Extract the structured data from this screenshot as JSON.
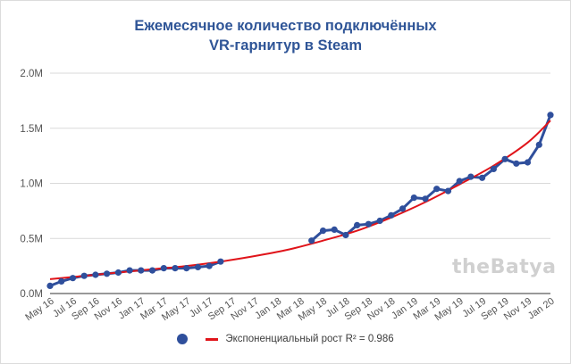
{
  "chart_data": {
    "type": "line",
    "title_line1": "Ежемесячное количество подключённых",
    "title_line2": "VR-гарнитур в Steam",
    "watermark": "theBatya",
    "y_ticks": [
      {
        "value": 0,
        "label": "0.0M"
      },
      {
        "value": 0.5,
        "label": "0.5M"
      },
      {
        "value": 1.0,
        "label": "1.0M"
      },
      {
        "value": 1.5,
        "label": "1.5M"
      },
      {
        "value": 2.0,
        "label": "2.0M"
      }
    ],
    "ylim": [
      0,
      2.0
    ],
    "x_range": [
      0,
      44
    ],
    "x_ticks": [
      {
        "index": 0,
        "label": "May 16"
      },
      {
        "index": 2,
        "label": "Jul 16"
      },
      {
        "index": 4,
        "label": "Sep 16"
      },
      {
        "index": 6,
        "label": "Nov 16"
      },
      {
        "index": 8,
        "label": "Jan 17"
      },
      {
        "index": 10,
        "label": "Mar 17"
      },
      {
        "index": 12,
        "label": "May 17"
      },
      {
        "index": 14,
        "label": "Jul 17"
      },
      {
        "index": 16,
        "label": "Sep 17"
      },
      {
        "index": 18,
        "label": "Nov 17"
      },
      {
        "index": 20,
        "label": "Jan 18"
      },
      {
        "index": 22,
        "label": "Mar 18"
      },
      {
        "index": 24,
        "label": "May 18"
      },
      {
        "index": 26,
        "label": "Jul 18"
      },
      {
        "index": 28,
        "label": "Sep 18"
      },
      {
        "index": 30,
        "label": "Nov 18"
      },
      {
        "index": 32,
        "label": "Jan 19"
      },
      {
        "index": 34,
        "label": "Mar 19"
      },
      {
        "index": 36,
        "label": "May 19"
      },
      {
        "index": 38,
        "label": "Jul 19"
      },
      {
        "index": 40,
        "label": "Sep 19"
      },
      {
        "index": 42,
        "label": "Nov 19"
      },
      {
        "index": 44,
        "label": "Jan 20"
      }
    ],
    "series": [
      {
        "color": "#2f4f9c",
        "segments": [
          [
            {
              "x": "May 16",
              "y": 0.07
            },
            {
              "x": "Jun 16",
              "y": 0.11
            },
            {
              "x": "Jul 16",
              "y": 0.14
            },
            {
              "x": "Aug 16",
              "y": 0.16
            },
            {
              "x": "Sep 16",
              "y": 0.17
            },
            {
              "x": "Oct 16",
              "y": 0.18
            },
            {
              "x": "Nov 16",
              "y": 0.19
            },
            {
              "x": "Dec 16",
              "y": 0.21
            },
            {
              "x": "Jan 17",
              "y": 0.21
            },
            {
              "x": "Feb 17",
              "y": 0.21
            },
            {
              "x": "Mar 17",
              "y": 0.23
            },
            {
              "x": "Apr 17",
              "y": 0.23
            },
            {
              "x": "May 17",
              "y": 0.23
            },
            {
              "x": "Jun 17",
              "y": 0.24
            },
            {
              "x": "Jul 17",
              "y": 0.25
            },
            {
              "x": "Aug 17",
              "y": 0.29
            }
          ],
          [
            {
              "x": "Apr 18",
              "y": 0.48
            },
            {
              "x": "May 18",
              "y": 0.57
            },
            {
              "x": "Jun 18",
              "y": 0.58
            },
            {
              "x": "Jul 18",
              "y": 0.53
            },
            {
              "x": "Aug 18",
              "y": 0.62
            },
            {
              "x": "Sep 18",
              "y": 0.63
            },
            {
              "x": "Oct 18",
              "y": 0.66
            },
            {
              "x": "Nov 18",
              "y": 0.71
            },
            {
              "x": "Dec 18",
              "y": 0.77
            },
            {
              "x": "Jan 19",
              "y": 0.87
            },
            {
              "x": "Feb 19",
              "y": 0.86
            },
            {
              "x": "Mar 19",
              "y": 0.95
            },
            {
              "x": "Apr 19",
              "y": 0.93
            },
            {
              "x": "May 19",
              "y": 1.02
            },
            {
              "x": "Jun 19",
              "y": 1.06
            },
            {
              "x": "Jul 19",
              "y": 1.05
            },
            {
              "x": "Aug 19",
              "y": 1.13
            },
            {
              "x": "Sep 19",
              "y": 1.22
            },
            {
              "x": "Oct 19",
              "y": 1.18
            },
            {
              "x": "Nov 19",
              "y": 1.19
            },
            {
              "x": "Dec 19",
              "y": 1.35
            },
            {
              "x": "Jan 20",
              "y": 1.62
            }
          ]
        ]
      },
      {
        "name": "Экспоненциальный рост R² = 0.986",
        "color": "#e0141a",
        "type": "trendline",
        "points": [
          {
            "x": "May 16",
            "y": 0.13
          },
          {
            "x": "Aug 16",
            "y": 0.16
          },
          {
            "x": "Nov 16",
            "y": 0.19
          },
          {
            "x": "Feb 17",
            "y": 0.22
          },
          {
            "x": "May 17",
            "y": 0.25
          },
          {
            "x": "Aug 17",
            "y": 0.29
          },
          {
            "x": "Nov 17",
            "y": 0.34
          },
          {
            "x": "Feb 18",
            "y": 0.4
          },
          {
            "x": "May 18",
            "y": 0.48
          },
          {
            "x": "Aug 18",
            "y": 0.57
          },
          {
            "x": "Nov 18",
            "y": 0.69
          },
          {
            "x": "Feb 19",
            "y": 0.83
          },
          {
            "x": "May 19",
            "y": 0.99
          },
          {
            "x": "Aug 19",
            "y": 1.16
          },
          {
            "x": "Nov 19",
            "y": 1.37
          },
          {
            "x": "Jan 20",
            "y": 1.57
          }
        ]
      }
    ],
    "legend_position": "bottom",
    "grid": true
  }
}
